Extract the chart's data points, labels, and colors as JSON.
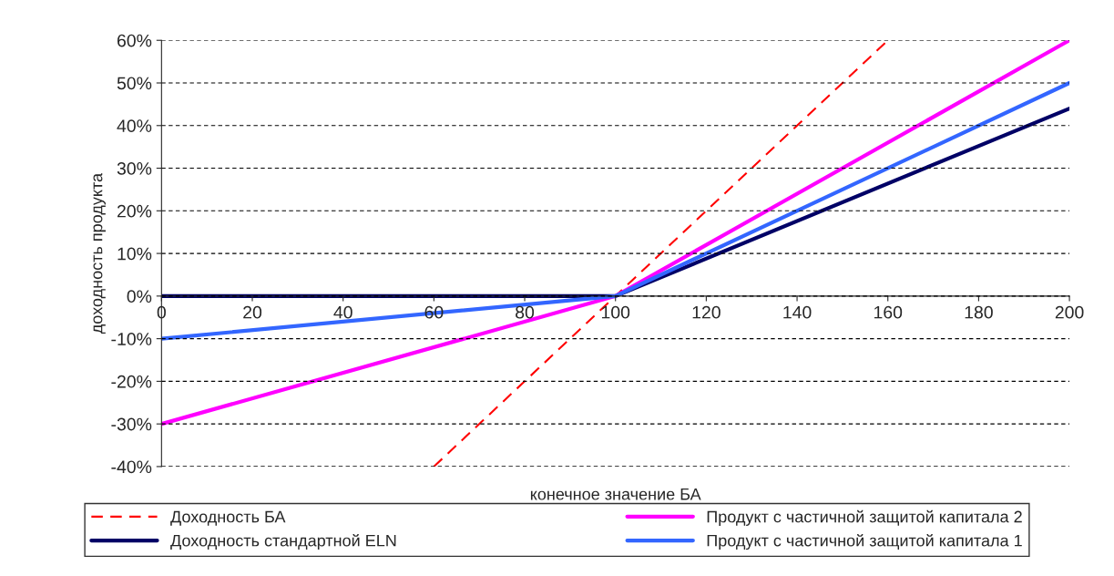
{
  "chart_data": {
    "type": "line",
    "xlabel": "конечное значение БА",
    "ylabel": "доходность продукта",
    "xlim": [
      0,
      200
    ],
    "xticks": [
      0,
      20,
      40,
      60,
      80,
      100,
      120,
      140,
      160,
      180,
      200
    ],
    "ylim": [
      -40,
      60
    ],
    "yticks": [
      {
        "value": -40,
        "label": "-40%"
      },
      {
        "value": -30,
        "label": "-30%"
      },
      {
        "value": -20,
        "label": "-20%"
      },
      {
        "value": -10,
        "label": "-10%"
      },
      {
        "value": 0,
        "label": "0%"
      },
      {
        "value": 10,
        "label": "10%"
      },
      {
        "value": 20,
        "label": "20%"
      },
      {
        "value": 30,
        "label": "30%"
      },
      {
        "value": 40,
        "label": "40%"
      },
      {
        "value": 50,
        "label": "50%"
      },
      {
        "value": 60,
        "label": "60%"
      }
    ],
    "grid": "y",
    "legend": "bottom",
    "marker": "none",
    "series": [
      {
        "name": "Доходность БА",
        "color": "#ff0000",
        "line_style": "dashed",
        "x": [
          60,
          160
        ],
        "values": [
          -40,
          60
        ]
      },
      {
        "name": "Доходность стандартной ELN",
        "color": "#000066",
        "x": [
          0,
          100,
          200
        ],
        "values": [
          0,
          0,
          44
        ]
      },
      {
        "name": "Продукт с частичной защитой капитала 2",
        "color": "#ff00ff",
        "x": [
          0,
          100,
          200
        ],
        "values": [
          -30,
          0,
          60
        ]
      },
      {
        "name": "Продукт с частичной защитой капитала 1",
        "color": "#3366ff",
        "x": [
          0,
          100,
          200
        ],
        "values": [
          -10,
          0,
          50
        ]
      }
    ]
  }
}
